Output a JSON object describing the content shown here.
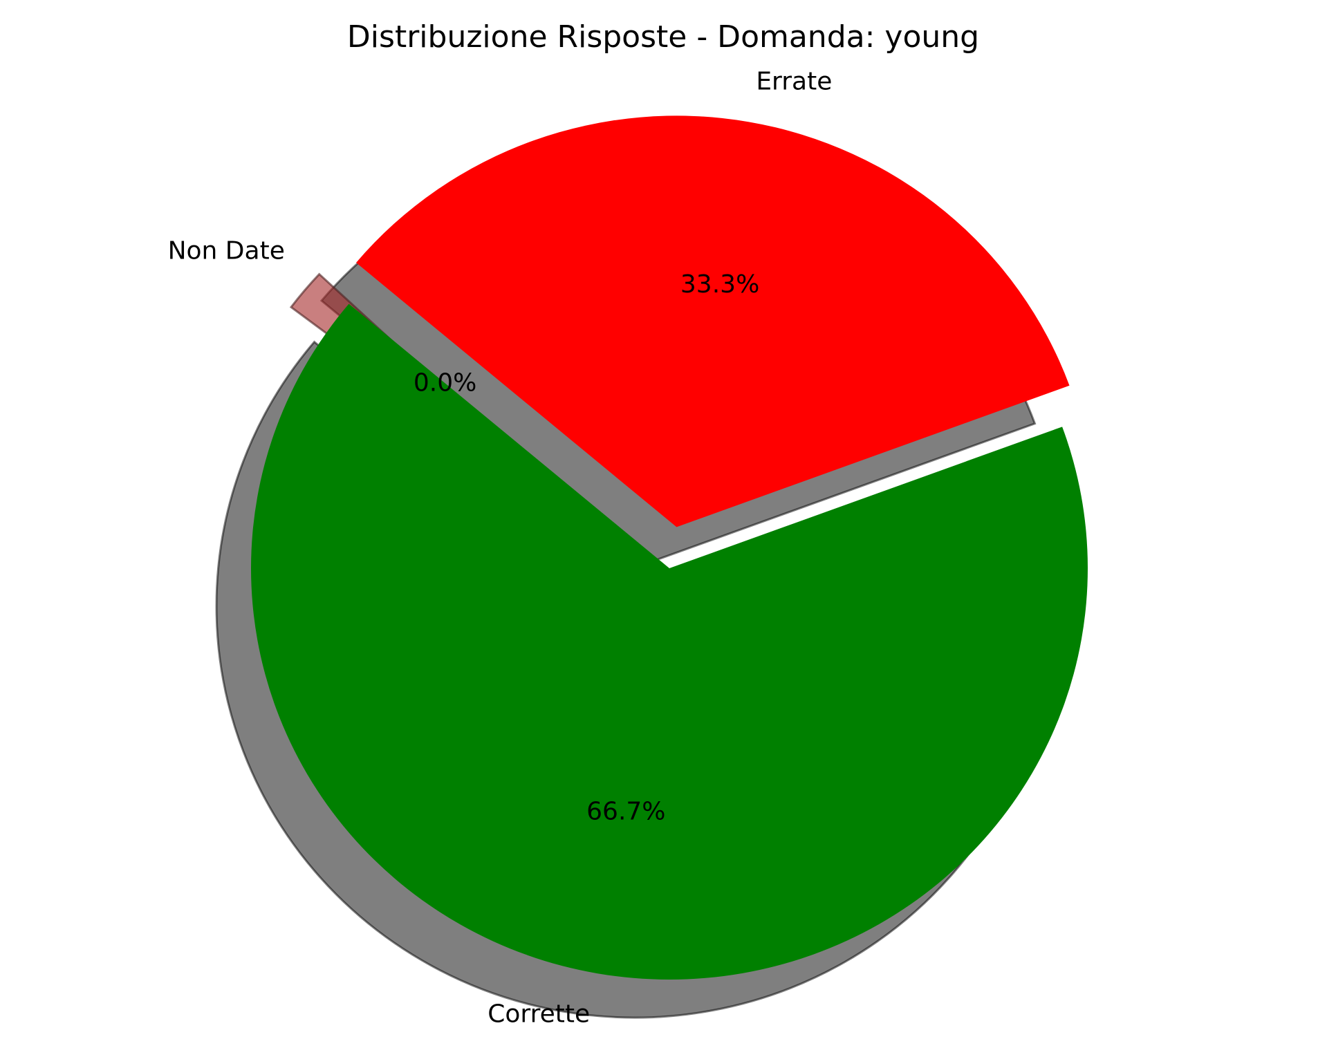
{
  "chart_data": {
    "type": "pie",
    "title": "Distribuzione Risposte - Domanda: young",
    "categories": [
      "Corrette",
      "Errate",
      "Non Date"
    ],
    "values": [
      66.7,
      33.3,
      0.0
    ],
    "percent_labels": [
      "66.7%",
      "33.3%",
      "0.0%"
    ],
    "colors": [
      "#008000",
      "#ff0000",
      "#a52a2a"
    ],
    "explode": [
      0.0,
      0.1,
      0.1
    ],
    "start_angle": 140,
    "shadow": true
  }
}
